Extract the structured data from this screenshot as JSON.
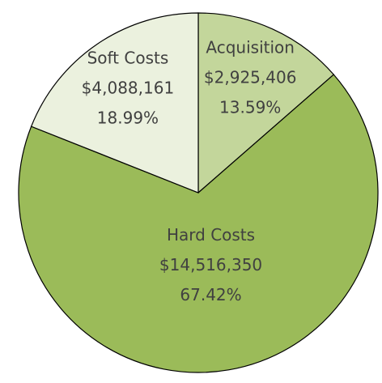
{
  "chart_data": {
    "type": "pie",
    "categories": [
      "Acquisition",
      "Hard Costs",
      "Soft Costs"
    ],
    "values": [
      2925406,
      14516350,
      4088161
    ],
    "value_labels": [
      "$2,925,406",
      "$14,516,350",
      "$4,088,161"
    ],
    "percent_labels": [
      "13.59%",
      "67.42%",
      "18.99%"
    ],
    "colors": [
      "#c3d69b",
      "#9bbb59",
      "#ebf1de"
    ]
  }
}
